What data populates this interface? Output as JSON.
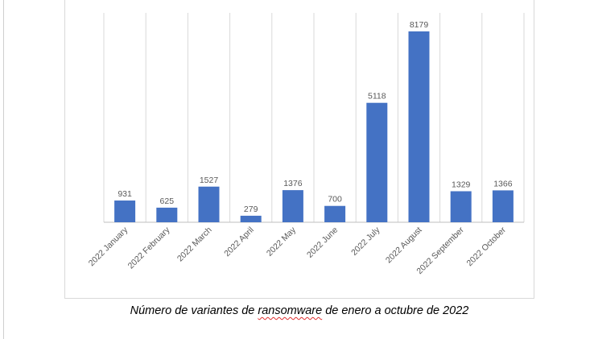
{
  "chart_data": {
    "type": "bar",
    "categories": [
      "2022 January",
      "2022 February",
      "2022 March",
      "2022 April",
      "2022 May",
      "2022 June",
      "2022 July",
      "2022 August",
      "2022 September",
      "2022 October"
    ],
    "values": [
      931,
      625,
      1527,
      279,
      1376,
      700,
      5118,
      8179,
      1329,
      1366
    ],
    "title": "",
    "xlabel": "",
    "ylabel": "",
    "ylim": [
      0,
      9000
    ],
    "grid": "vertical category separators",
    "legend": "none",
    "bar_color": "#4472c4",
    "data_labels": true
  },
  "caption": {
    "before": "Número de variantes de ",
    "flagged": "ransomware",
    "after": " de enero a octubre de 2022"
  }
}
